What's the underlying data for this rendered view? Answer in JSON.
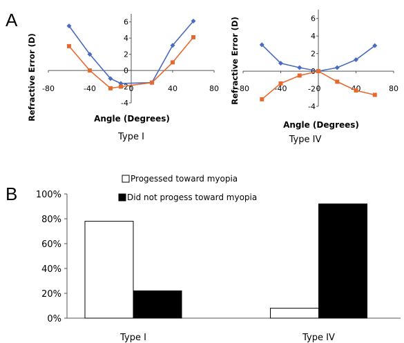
{
  "panels": {
    "a": "A",
    "b": "B"
  },
  "chart_data": [
    {
      "type": "line",
      "caption": "Type I",
      "xlabel": "Angle (Degrees)",
      "ylabel": "Refractive Error (D)",
      "xlim": [
        -80,
        80
      ],
      "ylim": [
        -4,
        7
      ],
      "xticks": [
        "-80",
        "-40",
        "0",
        "40",
        "80"
      ],
      "yticks": [
        "-4",
        "-2",
        "0",
        "2",
        "4",
        "6"
      ],
      "colors": [
        "#4a6bbf",
        "#e8692e"
      ],
      "markers": [
        "diamond",
        "square"
      ],
      "series": [
        {
          "x": [
            -60,
            -40,
            -20,
            -10,
            20,
            40,
            60
          ],
          "y": [
            5.5,
            2.0,
            -1.0,
            -1.6,
            -1.5,
            3.1,
            6.1
          ]
        },
        {
          "x": [
            -60,
            -40,
            -20,
            -10,
            20,
            40,
            60
          ],
          "y": [
            3.0,
            0.0,
            -2.2,
            -2.0,
            -1.5,
            1.0,
            4.1
          ]
        }
      ]
    },
    {
      "type": "line",
      "caption": "Type IV",
      "xlabel": "Angle (Degrees)",
      "ylabel": "Refractive Error (D)",
      "xlim": [
        -80,
        80
      ],
      "ylim": [
        -4,
        7
      ],
      "xticks": [
        "-80",
        "-40",
        "0",
        "40",
        "80"
      ],
      "yticks": [
        "-4",
        "-2",
        "0",
        "2",
        "4",
        "6"
      ],
      "colors": [
        "#4a6bbf",
        "#e8692e"
      ],
      "markers": [
        "diamond",
        "square"
      ],
      "series": [
        {
          "x": [
            -60,
            -40,
            -20,
            0,
            20,
            40,
            60
          ],
          "y": [
            3.0,
            0.9,
            0.4,
            0.0,
            0.4,
            1.3,
            2.9
          ]
        },
        {
          "x": [
            -60,
            -40,
            -20,
            0,
            20,
            40,
            60
          ],
          "y": [
            -3.2,
            -1.4,
            -0.5,
            0.0,
            -1.2,
            -2.2,
            -2.7
          ]
        }
      ]
    },
    {
      "type": "bar",
      "categories": [
        "Type I",
        "Type IV"
      ],
      "ylim": [
        0,
        100
      ],
      "yticks": [
        "0%",
        "20%",
        "40%",
        "60%",
        "80%",
        "100%"
      ],
      "colors": [
        "#ffffff",
        "#000000"
      ],
      "series": [
        {
          "name": "Progessed toward myopia",
          "values": [
            78,
            8
          ]
        },
        {
          "name": "Did not progess toward myopia",
          "values": [
            22,
            92
          ]
        }
      ]
    }
  ]
}
